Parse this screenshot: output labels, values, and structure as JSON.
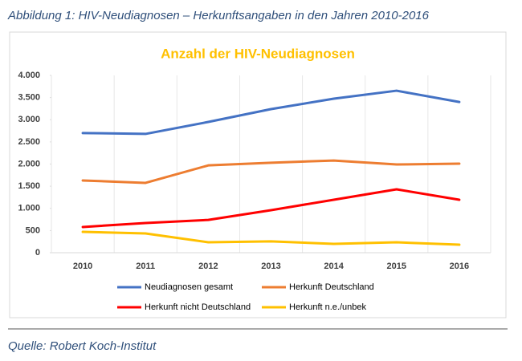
{
  "caption": "Abbildung 1: HIV-Neudiagnosen – Herkunftsangaben in den Jahren 2010-2016",
  "source": "Quelle: Robert Koch-Institut",
  "chart_data": {
    "type": "line",
    "title": "Anzahl der HIV-Neudiagnosen",
    "categories": [
      "2010",
      "2011",
      "2012",
      "2013",
      "2014",
      "2015",
      "2016"
    ],
    "series": [
      {
        "name": "Neudiagnosen gesamt",
        "color": "#4472c4",
        "values": [
          2700,
          2680,
          2950,
          3240,
          3475,
          3655,
          3400
        ]
      },
      {
        "name": "Herkunft Deutschland",
        "color": "#ed7d31",
        "values": [
          1630,
          1575,
          1970,
          2030,
          2080,
          1990,
          2010
        ]
      },
      {
        "name": "Herkunft nicht Deutschland",
        "color": "#ff0000",
        "values": [
          580,
          670,
          740,
          960,
          1195,
          1430,
          1195
        ]
      },
      {
        "name": "Herkunft n.e./unbek",
        "color": "#ffc000",
        "values": [
          470,
          435,
          235,
          255,
          200,
          235,
          180
        ]
      }
    ],
    "ylim": [
      0,
      4000
    ],
    "yticks": [
      0,
      500,
      {
        "value": 1000,
        "label": "1.000"
      },
      {
        "value": 1500,
        "label": "1.500"
      },
      {
        "value": 2000,
        "label": "2.000"
      },
      {
        "value": 2500,
        "label": "2.500"
      },
      {
        "value": 3000,
        "label": "3.000"
      },
      {
        "value": 3500,
        "label": "3.500"
      },
      {
        "value": 4000,
        "label": "4.000"
      }
    ],
    "legend": "bottom"
  }
}
